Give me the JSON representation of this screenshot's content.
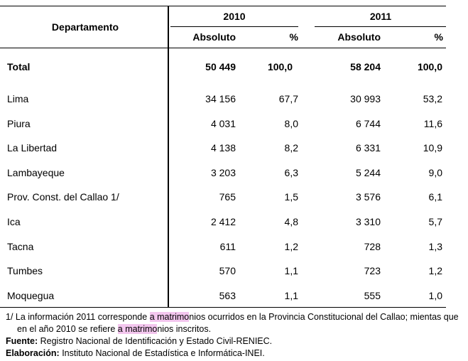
{
  "header": {
    "departamento": "Departamento",
    "year1": "2010",
    "year2": "2011",
    "absoluto": "Absoluto",
    "pct": "%"
  },
  "total": {
    "label": "Total",
    "abs2010": "50 449",
    "pct2010": "100,0",
    "abs2011": "58 204",
    "pct2011": "100,0"
  },
  "rows": [
    {
      "label": "Lima",
      "abs2010": "34 156",
      "pct2010": "67,7",
      "abs2011": "30 993",
      "pct2011": "53,2"
    },
    {
      "label": "Piura",
      "abs2010": "4 031",
      "pct2010": "8,0",
      "abs2011": "6 744",
      "pct2011": "11,6"
    },
    {
      "label": "La Libertad",
      "abs2010": "4 138",
      "pct2010": "8,2",
      "abs2011": "6 331",
      "pct2011": "10,9"
    },
    {
      "label": "Lambayeque",
      "abs2010": "3 203",
      "pct2010": "6,3",
      "abs2011": "5 244",
      "pct2011": "9,0"
    },
    {
      "label": "Prov. Const. del Callao 1/",
      "abs2010": "765",
      "pct2010": "1,5",
      "abs2011": "3 576",
      "pct2011": "6,1"
    },
    {
      "label": "Ica",
      "abs2010": "2 412",
      "pct2010": "4,8",
      "abs2011": "3 310",
      "pct2011": "5,7"
    },
    {
      "label": "Tacna",
      "abs2010": "611",
      "pct2010": "1,2",
      "abs2011": "728",
      "pct2011": "1,3"
    },
    {
      "label": "Tumbes",
      "abs2010": "570",
      "pct2010": "1,1",
      "abs2011": "723",
      "pct2011": "1,2"
    },
    {
      "label": "Moquegua",
      "abs2010": "563",
      "pct2010": "1,1",
      "abs2011": "555",
      "pct2011": "1,0"
    }
  ],
  "footnotes": {
    "note_line1_pre": "1/  La información 2011 corresponde ",
    "note_line1_hl": "a matrimo",
    "note_line1_post": "nios ocurridos en la Provincia Constitucional del Callao; mientas que",
    "note_line2_pre": "en el año 2010 se refiere ",
    "note_line2_hl": "a matrimo",
    "note_line2_post": "nios inscritos.",
    "fuente_label": "Fuente:",
    "fuente_text": " Registro Nacional de Identificación y Estado Civil-RENIEC.",
    "elaboracion_label": "Elaboración:",
    "elaboracion_text": " Instituto Nacional de Estadística e Informática-INEI."
  }
}
